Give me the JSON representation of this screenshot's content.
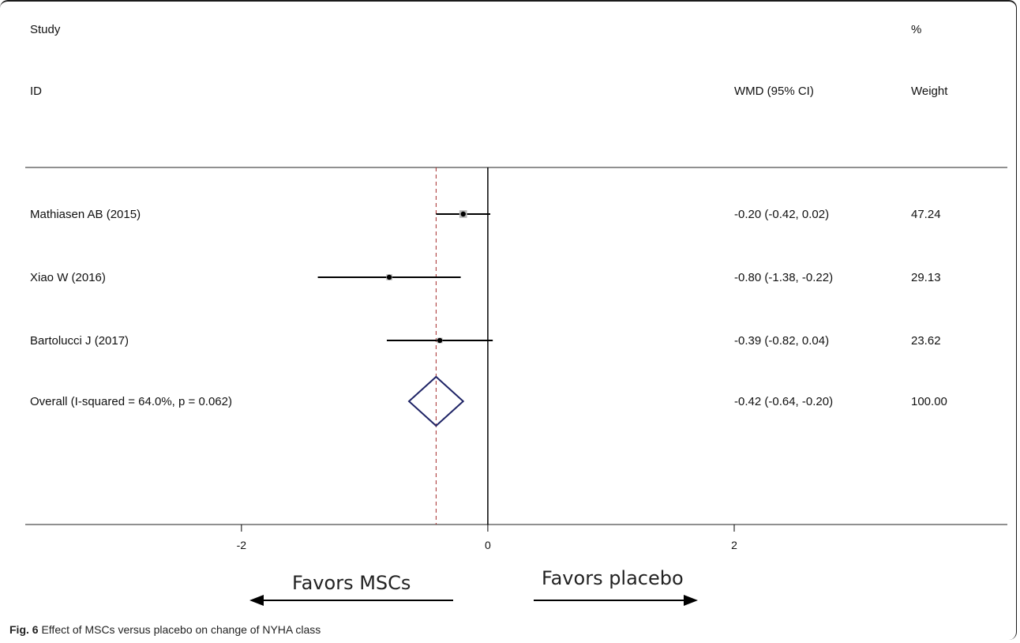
{
  "headers": {
    "study_top": "Study",
    "study_bottom": "ID",
    "pct_top": "%",
    "wmd": "WMD (95% CI)",
    "weight": "Weight"
  },
  "caption": {
    "label": "Fig. 6",
    "text": " Effect of MSCs versus placebo on change of NYHA class"
  },
  "favors": {
    "left": "Favors MSCs",
    "right": "Favors placebo"
  },
  "chart_data": {
    "type": "forest",
    "xlabel": "",
    "xlim": [
      -3.96,
      4.32
    ],
    "xticks": [
      -2,
      0,
      2
    ],
    "xtick_labels": [
      "-2",
      "0",
      "2"
    ],
    "null_line": 0,
    "overall_line": -0.42,
    "studies": [
      {
        "label": "Mathiasen AB (2015)",
        "est": -0.2,
        "lo": -0.42,
        "hi": 0.02,
        "ci_text": "-0.20 (-0.42, 0.02)",
        "weight": "47.24"
      },
      {
        "label": "Xiao W (2016)",
        "est": -0.8,
        "lo": -1.38,
        "hi": -0.22,
        "ci_text": "-0.80 (-1.38, -0.22)",
        "weight": "29.13"
      },
      {
        "label": "Bartolucci J (2017)",
        "est": -0.39,
        "lo": -0.82,
        "hi": 0.04,
        "ci_text": "-0.39 (-0.82, 0.04)",
        "weight": "23.62"
      }
    ],
    "overall": {
      "label": "Overall  (I-squared = 64.0%, p = 0.062)",
      "est": -0.42,
      "lo": -0.64,
      "hi": -0.2,
      "ci_text": "-0.42 (-0.64, -0.20)",
      "weight": "100.00"
    },
    "colors": {
      "diamond": "#1f2466",
      "overall_line": "#a52a2a",
      "marker_box": "#b8b8b8"
    }
  }
}
